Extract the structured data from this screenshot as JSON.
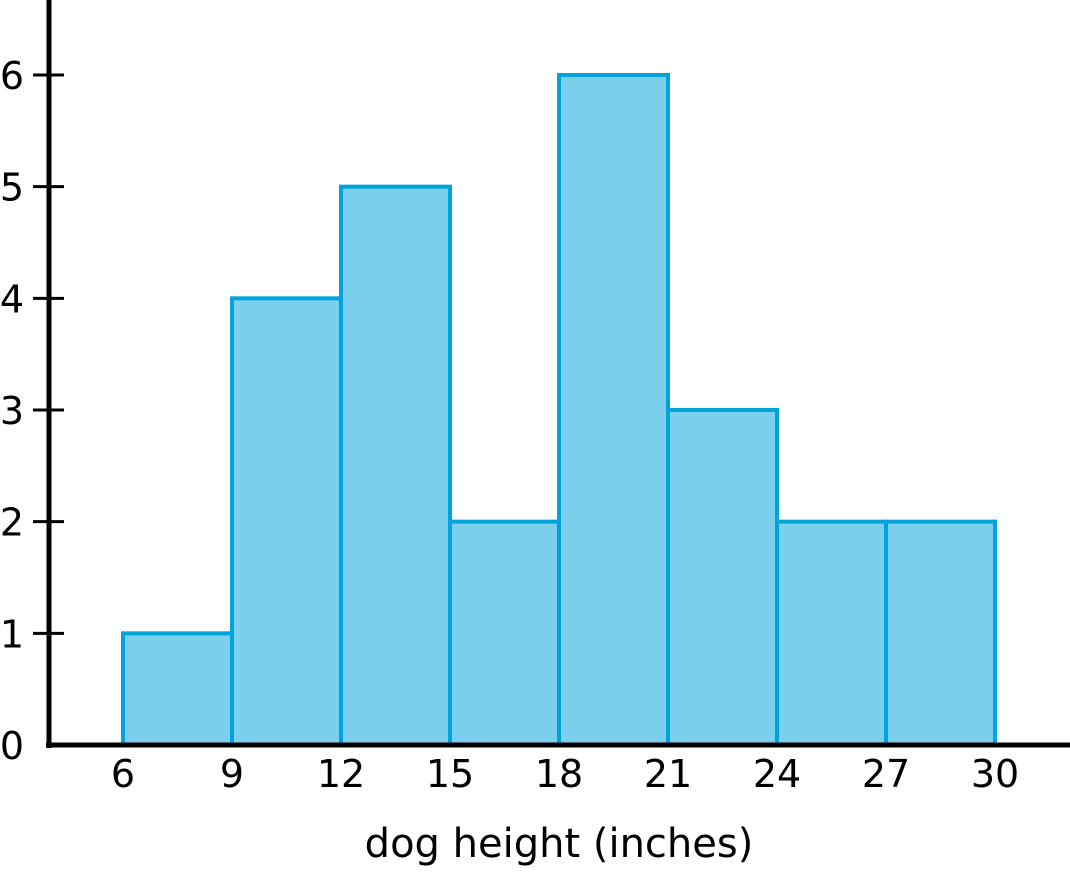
{
  "chart_data": {
    "type": "bar",
    "subtype": "histogram",
    "title": "",
    "xlabel": "dog height (inches)",
    "ylabel": "",
    "bin_edges": [
      6,
      9,
      12,
      15,
      18,
      21,
      24,
      27,
      30
    ],
    "values": [
      1,
      4,
      5,
      2,
      6,
      3,
      2,
      2
    ],
    "x_ticks": [
      "6",
      "9",
      "12",
      "15",
      "18",
      "21",
      "24",
      "27",
      "30"
    ],
    "y_ticks": [
      "0",
      "1",
      "2",
      "3",
      "4",
      "5",
      "6"
    ],
    "xlim": [
      1.9,
      30
    ],
    "ylim": [
      0,
      6.7
    ],
    "grid": false,
    "colors": {
      "fill": "#7dcfee",
      "stroke": "#00a3dc",
      "axis": "#000000"
    }
  }
}
